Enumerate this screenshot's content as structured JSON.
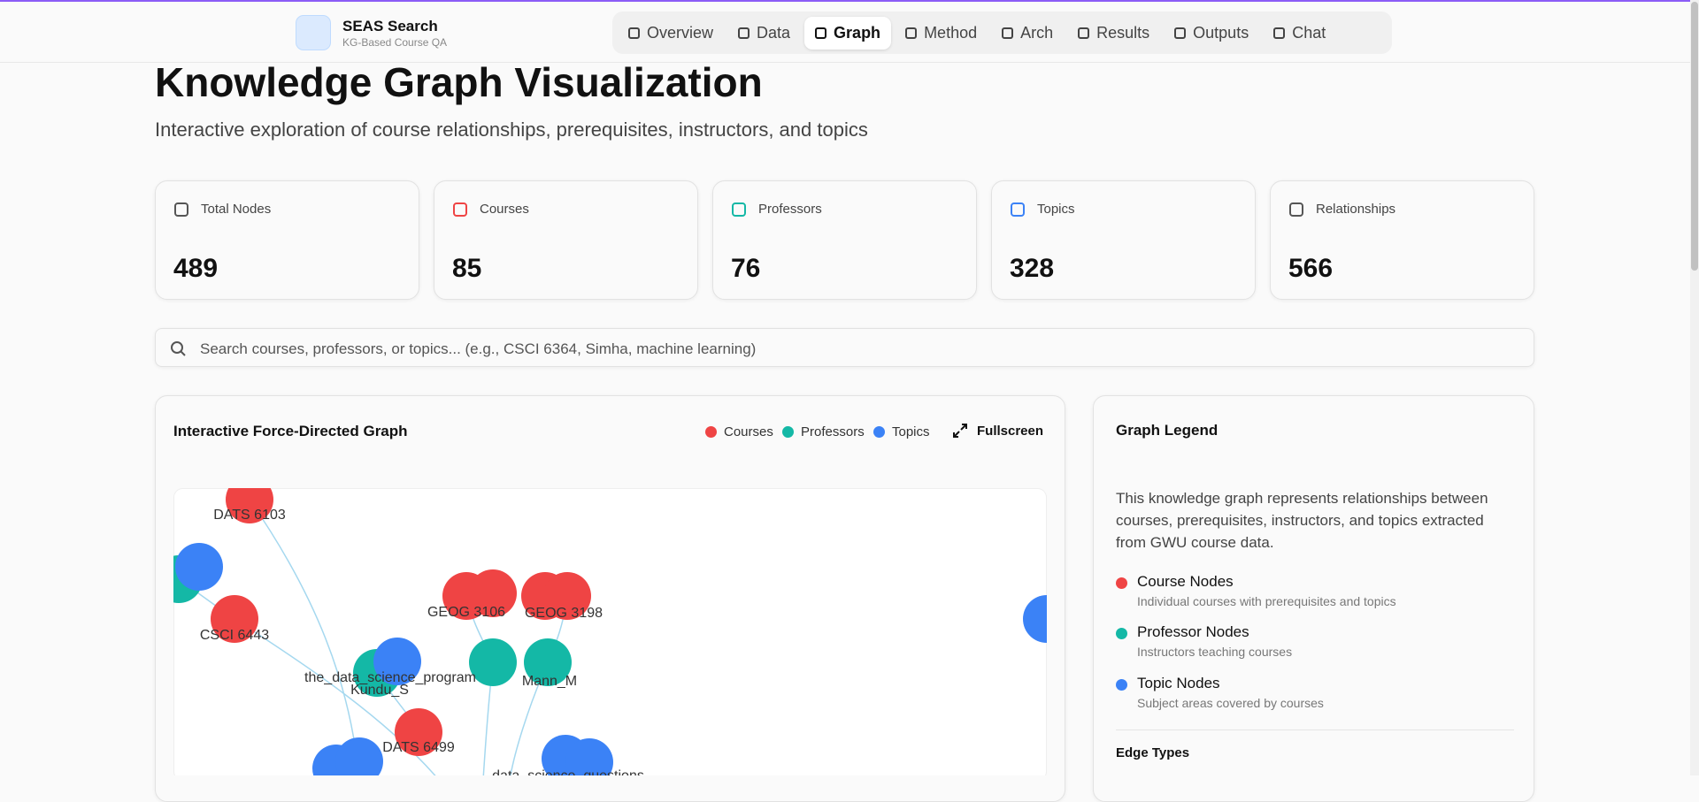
{
  "header": {
    "brand": "SEAS Search",
    "tagline": "KG-Based Course QA",
    "nav": [
      "Overview",
      "Data",
      "Graph",
      "Method",
      "Arch",
      "Results",
      "Outputs",
      "Chat"
    ]
  },
  "page": {
    "title": "Knowledge Graph Visualization",
    "subtitle": "Interactive exploration of course relationships, prerequisites, instructors, and topics"
  },
  "stats": [
    {
      "label": "Total Nodes",
      "value": 489
    },
    {
      "label": "Courses",
      "value": 85
    },
    {
      "label": "Professors",
      "value": 76
    },
    {
      "label": "Topics",
      "value": 328
    },
    {
      "label": "Relationships",
      "value": 566
    }
  ],
  "search": {
    "placeholder": "Search courses, professors, or topics... (e.g., CSCI 6364, Simha, machine learning)"
  },
  "graph": {
    "title": "Interactive Force-Directed Graph",
    "legend": [
      "Courses",
      "Professors",
      "Topics"
    ],
    "fullscreen": "Fullscreen",
    "nodes": [
      {
        "label": "DATS 6103"
      },
      {
        "label": "CSCI 6443"
      },
      {
        "label": "GEOG 3106"
      },
      {
        "label": "GEOG 3198"
      },
      {
        "label": "the_data_science_program"
      },
      {
        "label": "Kundu_S"
      },
      {
        "label": "Mann_M"
      },
      {
        "label": "DATS 6499"
      },
      {
        "label": "data_science_questions"
      }
    ]
  },
  "legend_panel": {
    "title": "Graph Legend",
    "description": "This knowledge graph represents relationships between courses, prerequisites, instructors, and topics extracted from GWU course data.",
    "items": [
      {
        "name": "Course Nodes",
        "description": "Individual courses with prerequisites and topics"
      },
      {
        "name": "Professor Nodes",
        "description": "Instructors teaching courses"
      },
      {
        "name": "Topic Nodes",
        "description": "Subject areas covered by courses"
      }
    ],
    "edge_types_title": "Edge Types"
  }
}
